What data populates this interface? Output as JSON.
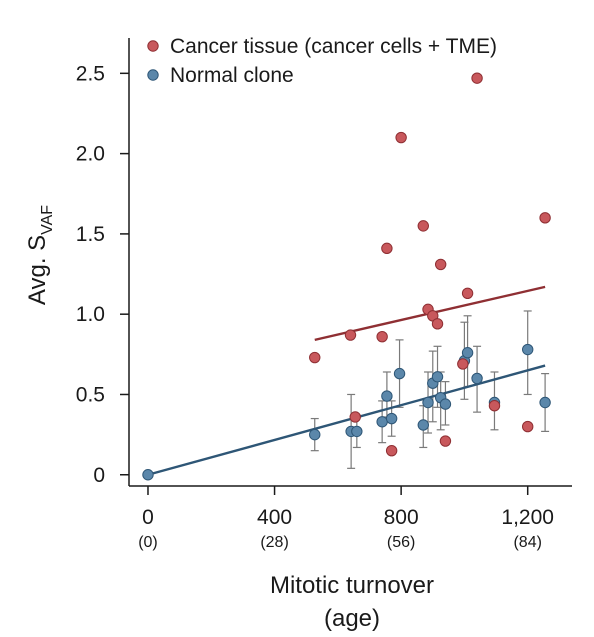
{
  "chart_data": {
    "type": "scatter",
    "title": "",
    "xlabel": "Mitotic turnover",
    "xlabel_sub": "(age)",
    "ylabel_main": "Avg. S",
    "ylabel_subscript": "VAF",
    "xlim": [
      -60,
      1340
    ],
    "ylim": [
      -0.07,
      2.72
    ],
    "x_ticks": [
      {
        "value": 0,
        "label": "0",
        "sublabel": "(0)"
      },
      {
        "value": 400,
        "label": "400",
        "sublabel": "(28)"
      },
      {
        "value": 800,
        "label": "800",
        "sublabel": "(56)"
      },
      {
        "value": 1200,
        "label": "1,200",
        "sublabel": "(84)"
      }
    ],
    "y_ticks": [
      {
        "value": 0,
        "label": "0"
      },
      {
        "value": 0.5,
        "label": "0.5"
      },
      {
        "value": 1.0,
        "label": "1.0"
      },
      {
        "value": 1.5,
        "label": "1.5"
      },
      {
        "value": 2.0,
        "label": "2.0"
      },
      {
        "value": 2.5,
        "label": "2.5"
      }
    ],
    "legend_position": "top-left",
    "grid": false,
    "series": [
      {
        "name": "Cancer tissue (cancer cells + TME)",
        "color": "#c8585c",
        "edge": "#8f2f33",
        "points": [
          {
            "x": 527,
            "y": 0.73
          },
          {
            "x": 640,
            "y": 0.87
          },
          {
            "x": 655,
            "y": 0.36
          },
          {
            "x": 740,
            "y": 0.86
          },
          {
            "x": 755,
            "y": 1.41
          },
          {
            "x": 770,
            "y": 0.15
          },
          {
            "x": 800,
            "y": 2.1
          },
          {
            "x": 870,
            "y": 1.55
          },
          {
            "x": 885,
            "y": 1.03
          },
          {
            "x": 900,
            "y": 0.99
          },
          {
            "x": 915,
            "y": 0.94
          },
          {
            "x": 925,
            "y": 1.31
          },
          {
            "x": 940,
            "y": 0.21
          },
          {
            "x": 995,
            "y": 0.69
          },
          {
            "x": 1010,
            "y": 1.13
          },
          {
            "x": 1040,
            "y": 2.47
          },
          {
            "x": 1095,
            "y": 0.43
          },
          {
            "x": 1200,
            "y": 0.3
          },
          {
            "x": 1255,
            "y": 1.6
          }
        ],
        "trendline": {
          "x": [
            527,
            1255
          ],
          "y": [
            0.84,
            1.17
          ]
        }
      },
      {
        "name": "Normal clone",
        "color": "#5b87aa",
        "edge": "#2e5676",
        "points": [
          {
            "x": 0,
            "y": 0.0
          },
          {
            "x": 527,
            "y": 0.25,
            "err": [
              0.15,
              0.35
            ]
          },
          {
            "x": 642,
            "y": 0.27,
            "err": [
              0.04,
              0.5
            ]
          },
          {
            "x": 660,
            "y": 0.27,
            "err": [
              0.17,
              0.37
            ]
          },
          {
            "x": 740,
            "y": 0.33,
            "err": [
              0.2,
              0.46
            ]
          },
          {
            "x": 755,
            "y": 0.49,
            "err": [
              0.36,
              0.64
            ]
          },
          {
            "x": 770,
            "y": 0.35,
            "err": [
              0.24,
              0.46
            ]
          },
          {
            "x": 795,
            "y": 0.63,
            "err": [
              0.42,
              0.84
            ]
          },
          {
            "x": 870,
            "y": 0.31,
            "err": [
              0.17,
              0.43
            ]
          },
          {
            "x": 885,
            "y": 0.45,
            "err": [
              0.26,
              0.64
            ]
          },
          {
            "x": 900,
            "y": 0.57,
            "err": [
              0.33,
              0.77
            ]
          },
          {
            "x": 915,
            "y": 0.61,
            "err": [
              0.42,
              0.8
            ]
          },
          {
            "x": 925,
            "y": 0.48,
            "err": [
              0.28,
              0.64
            ]
          },
          {
            "x": 940,
            "y": 0.44,
            "err": [
              0.31,
              0.58
            ]
          },
          {
            "x": 1000,
            "y": 0.71,
            "err": [
              0.47,
              0.95
            ]
          },
          {
            "x": 1010,
            "y": 0.76,
            "err": [
              0.55,
              0.99
            ]
          },
          {
            "x": 1040,
            "y": 0.6,
            "err": [
              0.39,
              0.8
            ]
          },
          {
            "x": 1095,
            "y": 0.45,
            "err": [
              0.28,
              0.64
            ]
          },
          {
            "x": 1200,
            "y": 0.78,
            "err": [
              0.5,
              1.02
            ]
          },
          {
            "x": 1255,
            "y": 0.45,
            "err": [
              0.27,
              0.63
            ]
          }
        ],
        "trendline": {
          "x": [
            0,
            1255
          ],
          "y": [
            0.0,
            0.68
          ]
        }
      }
    ]
  }
}
